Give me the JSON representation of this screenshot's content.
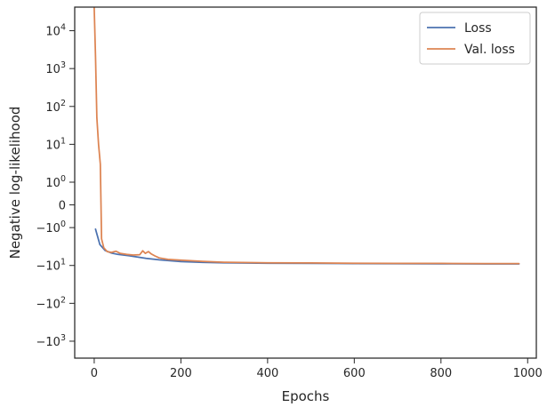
{
  "chart_data": {
    "type": "line",
    "xlabel": "Epochs",
    "ylabel": "Negative log-likelihood",
    "xlim": [
      -45,
      1020
    ],
    "x_ticks": [
      0,
      200,
      400,
      600,
      800,
      1000
    ],
    "x_tick_labels": [
      "0",
      "200",
      "400",
      "600",
      "800",
      "1000"
    ],
    "y_scale": "symlog",
    "ylim": [
      -2800,
      42000
    ],
    "y_ticks": [
      {
        "value": 10000,
        "base": "10",
        "exp": "4"
      },
      {
        "value": 1000,
        "base": "10",
        "exp": "3"
      },
      {
        "value": 100,
        "base": "10",
        "exp": "2"
      },
      {
        "value": 10,
        "base": "10",
        "exp": "1"
      },
      {
        "value": 1,
        "base": "10",
        "exp": "0"
      },
      {
        "value": 0,
        "base": "0",
        "exp": ""
      },
      {
        "value": -1,
        "base": "−10",
        "exp": "0"
      },
      {
        "value": -10,
        "base": "−10",
        "exp": "1"
      },
      {
        "value": -100,
        "base": "−10",
        "exp": "2"
      },
      {
        "value": -1000,
        "base": "−10",
        "exp": "3"
      }
    ],
    "legend": {
      "position": "upper right"
    },
    "series": [
      {
        "name": "Loss",
        "color": "#4c72b0",
        "x": [
          3,
          13,
          25,
          40,
          55,
          80,
          100,
          120,
          150,
          200,
          250,
          300,
          400,
          500,
          600,
          700,
          800,
          900,
          980
        ],
        "y": [
          -1.1,
          -2.8,
          -4.0,
          -4.7,
          -5.1,
          -5.5,
          -6.0,
          -6.5,
          -7.1,
          -7.9,
          -8.3,
          -8.5,
          -8.7,
          -8.8,
          -8.9,
          -9.0,
          -9.05,
          -9.1,
          -9.1
        ]
      },
      {
        "name": "Val. loss",
        "color": "#dd8452",
        "x": [
          0,
          3,
          6,
          10,
          14,
          17,
          22,
          30,
          40,
          50,
          60,
          75,
          90,
          105,
          112,
          118,
          125,
          132,
          140,
          150,
          170,
          200,
          250,
          300,
          400,
          500,
          600,
          700,
          800,
          900,
          980
        ],
        "y": [
          42000,
          2000,
          50,
          10,
          3,
          -2,
          -3.4,
          -4.3,
          -4.5,
          -4.2,
          -4.8,
          -5.1,
          -5.3,
          -5.2,
          -4.1,
          -4.8,
          -4.3,
          -5.0,
          -5.6,
          -6.3,
          -6.9,
          -7.2,
          -7.8,
          -8.2,
          -8.5,
          -8.6,
          -8.7,
          -8.8,
          -8.8,
          -8.9,
          -8.9
        ]
      }
    ]
  }
}
